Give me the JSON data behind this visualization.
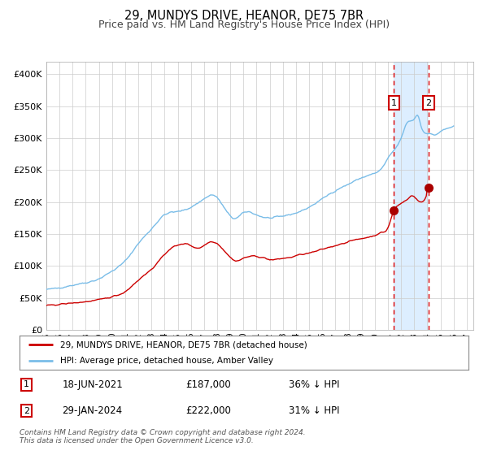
{
  "title": "29, MUNDYS DRIVE, HEANOR, DE75 7BR",
  "subtitle": "Price paid vs. HM Land Registry's House Price Index (HPI)",
  "xlim_start": 1995.0,
  "xlim_end": 2027.5,
  "ylim": [
    0,
    420000
  ],
  "yticks": [
    0,
    50000,
    100000,
    150000,
    200000,
    250000,
    300000,
    350000,
    400000
  ],
  "ytick_labels": [
    "£0",
    "£50K",
    "£100K",
    "£150K",
    "£200K",
    "£250K",
    "£300K",
    "£350K",
    "£400K"
  ],
  "xticks": [
    1995,
    1996,
    1997,
    1998,
    1999,
    2000,
    2001,
    2002,
    2003,
    2004,
    2005,
    2006,
    2007,
    2008,
    2009,
    2010,
    2011,
    2012,
    2013,
    2014,
    2015,
    2016,
    2017,
    2018,
    2019,
    2020,
    2021,
    2022,
    2023,
    2024,
    2025,
    2026,
    2027
  ],
  "sale1_x": 2021.46,
  "sale1_y": 187000,
  "sale1_label": "1",
  "sale2_x": 2024.08,
  "sale2_y": 222000,
  "sale2_label": "2",
  "vline1_x": 2021.46,
  "vline2_x": 2024.08,
  "hpi_color": "#7abde8",
  "price_color": "#cc0000",
  "marker_color": "#aa0000",
  "grid_color": "#cccccc",
  "bg_color": "#ffffff",
  "shaded_region_color": "#ddeeff",
  "legend1_text": "29, MUNDYS DRIVE, HEANOR, DE75 7BR (detached house)",
  "legend2_text": "HPI: Average price, detached house, Amber Valley",
  "annotation1_date": "18-JUN-2021",
  "annotation1_price": "£187,000",
  "annotation1_detail": "36% ↓ HPI",
  "annotation2_date": "29-JAN-2024",
  "annotation2_price": "£222,000",
  "annotation2_detail": "31% ↓ HPI",
  "footer": "Contains HM Land Registry data © Crown copyright and database right 2024.\nThis data is licensed under the Open Government Licence v3.0."
}
